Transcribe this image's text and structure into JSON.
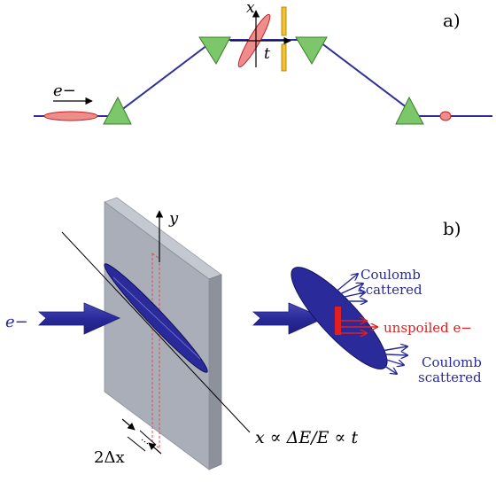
{
  "panel_a": {
    "label": "a)",
    "electron_label": "e−",
    "axis_x_label": "x",
    "axis_t_label": "t"
  },
  "panel_b": {
    "label": "b)",
    "axis_y_label": "y",
    "electron_label": "e−",
    "width_label": "2Δx",
    "relation_label": "x ∝ ΔE/E ∝ t",
    "coulomb_top_line1": "Coulomb",
    "coulomb_top_line2": "scattered",
    "unspoiled_label": "unspoiled e−",
    "coulomb_bottom_line1": "Coulomb",
    "coulomb_bottom_line2": "scattered"
  },
  "colors": {
    "beamline": "#2f2f96",
    "magnet": "#7cc76a",
    "bunch": "#e84a4a",
    "bunch_fill": "#f08c8c",
    "foil": "#f2c230",
    "slab_front": "#a9aeb8",
    "slab_side": "#8c919c",
    "electron_blue": "#2a2a9a",
    "unspoiled_red": "#e02020"
  }
}
